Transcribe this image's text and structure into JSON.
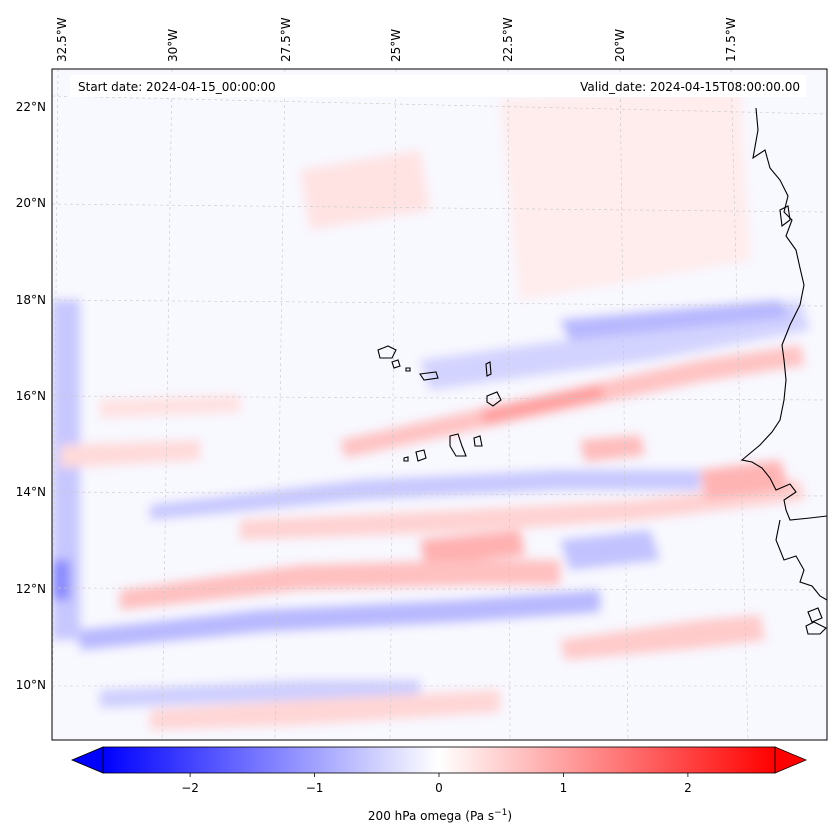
{
  "map": {
    "header_left": "Start date: 2024-04-15_00:00:00",
    "header_right": "Valid_date: 2024-04-15T08:00:00.00",
    "lon_labels": [
      "32.5°W",
      "30°W",
      "27.5°W",
      "25°W",
      "22.5°W",
      "20°W",
      "17.5°W"
    ],
    "lat_labels": [
      "22°N",
      "20°N",
      "18°N",
      "16°N",
      "14°N",
      "12°N",
      "10°N"
    ]
  },
  "colorbar": {
    "label": "200 hPa omega (Pa s",
    "label_sup": "−1",
    "label_tail": ")",
    "ticks": [
      "−2",
      "−1",
      "0",
      "1",
      "2"
    ],
    "min_value": -2.7,
    "max_value": 2.7,
    "colors": {
      "negative": "#0000ff",
      "zero": "#ffffff",
      "positive": "#ff0000"
    }
  },
  "chart_data": {
    "type": "heatmap",
    "variable": "200 hPa omega",
    "units": "Pa s-1",
    "color_range": [
      -2.7,
      2.7
    ],
    "colorbar_ticks": [
      -2,
      -1,
      0,
      1,
      2
    ],
    "lon_ticks": [
      -32.5,
      -30,
      -27.5,
      -25,
      -22.5,
      -20,
      -17.5
    ],
    "lat_ticks": [
      22,
      20,
      18,
      16,
      14,
      12,
      10
    ]
  }
}
